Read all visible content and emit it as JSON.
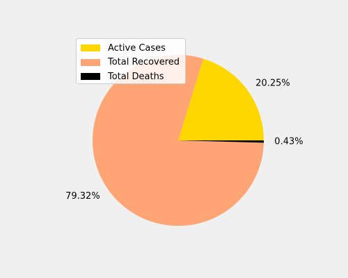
{
  "chart_data": {
    "type": "pie",
    "title": "",
    "legend_position": "upper-left",
    "categories": [
      "Active Cases",
      "Total Recovered",
      "Total Deaths"
    ],
    "values": [
      20.25,
      79.32,
      0.43
    ],
    "labels": [
      "20.25%",
      "79.32%",
      "0.43%"
    ],
    "colors": [
      "#FFD700",
      "#FFA474",
      "#000000"
    ],
    "start_angle_deg": 0,
    "direction": "counterclockwise"
  }
}
